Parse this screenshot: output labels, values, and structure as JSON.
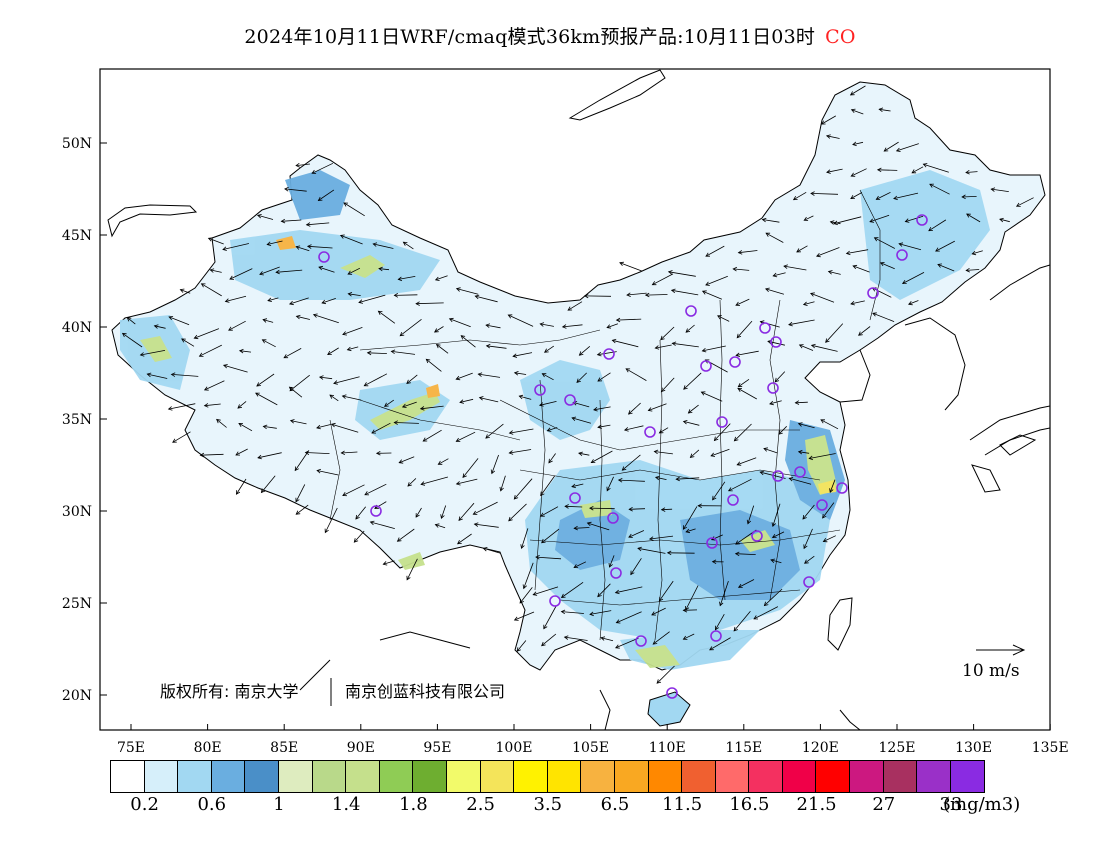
{
  "title": {
    "main": "2024年10月11日WRF/cmaq模式36km预报产品:10月11日03时",
    "species": "CO",
    "species_color": "#ff2222"
  },
  "map": {
    "lat_labels": [
      "50N",
      "45N",
      "40N",
      "35N",
      "30N",
      "25N",
      "20N"
    ],
    "lon_labels": [
      "75E",
      "80E",
      "85E",
      "90E",
      "95E",
      "100E",
      "105E",
      "110E",
      "115E",
      "120E",
      "125E",
      "130E",
      "135E"
    ],
    "copyright_left": "版权所有: 南京大学",
    "copyright_right": "南京创蓝科技有限公司",
    "wind_scale_label": "10 m/s",
    "station_marker_color": "#8a2be2",
    "land_background": "#e8f5fc"
  },
  "legend": {
    "unit": "(mg/m3)",
    "colors": [
      "#ffffff",
      "#d6effa",
      "#a2d8f2",
      "#6aaee0",
      "#4a8fc8",
      "#deecbf",
      "#b9d98a",
      "#c5e08c",
      "#8fcc55",
      "#6eae30",
      "#f2fa6a",
      "#f4e45a",
      "#fff200",
      "#ffe400",
      "#f7b240",
      "#f9a822",
      "#ff8800",
      "#f06030",
      "#ff6a6a",
      "#f43060",
      "#f00048",
      "#ff0000",
      "#cc1880",
      "#a83060",
      "#9a30c8",
      "#8a2be2"
    ],
    "labels": [
      {
        "text": "0.2",
        "slot": 1
      },
      {
        "text": "0.6",
        "slot": 3
      },
      {
        "text": "1",
        "slot": 5
      },
      {
        "text": "1.4",
        "slot": 7
      },
      {
        "text": "1.8",
        "slot": 9
      },
      {
        "text": "2.5",
        "slot": 11
      },
      {
        "text": "3.5",
        "slot": 13
      },
      {
        "text": "6.5",
        "slot": 15
      },
      {
        "text": "11.5",
        "slot": 17
      },
      {
        "text": "16.5",
        "slot": 19
      },
      {
        "text": "21.5",
        "slot": 21
      },
      {
        "text": "27",
        "slot": 23
      },
      {
        "text": "33",
        "slot": 25
      }
    ]
  }
}
